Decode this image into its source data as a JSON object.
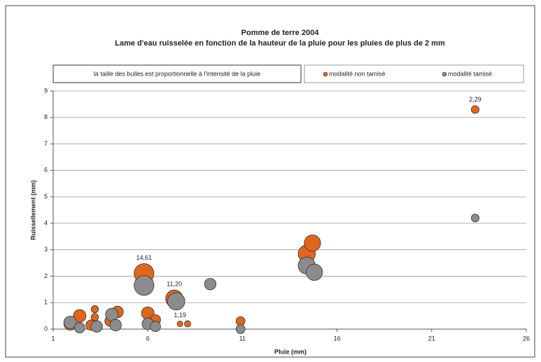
{
  "chart_data": {
    "type": "bubble",
    "title": "Pomme de terre 2004",
    "subtitle": "Lame d'eau ruisselée en fonction de la hauteur de la pluie pour les pluies de plus de 2 mm",
    "annotation": "la taille des bulles est proportionnelle à l'intensité de la pluie",
    "x_label": "Pluie (mm)",
    "y_label": "Ruissellement (mm)",
    "xlim": [
      1,
      26
    ],
    "xticks": [
      1,
      6,
      11,
      16,
      21,
      26
    ],
    "ylim": [
      0,
      9
    ],
    "yticks": [
      0,
      1,
      2,
      3,
      4,
      5,
      6,
      7,
      8,
      9
    ],
    "grid": true,
    "legend": "top-right",
    "series": [
      {
        "name": "modalité non tamisé",
        "color": "#e0661c",
        "x": [
          1.9,
          2.4,
          3.2,
          3.2,
          3.0,
          4.4,
          4.0,
          5.8,
          6.0,
          6.4,
          7.4,
          7.7,
          8.1,
          10.9,
          14.4,
          14.7,
          23.3
        ],
        "values": [
          0.2,
          0.5,
          0.75,
          0.45,
          0.15,
          0.65,
          0.3,
          2.1,
          0.6,
          0.35,
          1.15,
          0.2,
          0.2,
          0.3,
          2.85,
          3.25,
          8.3
        ],
        "sizes": [
          6,
          6,
          2,
          2,
          4,
          5,
          4,
          14.61,
          6,
          4,
          11.2,
          1.19,
          1.5,
          3,
          11,
          10,
          2.29
        ],
        "size_labels": [
          null,
          null,
          null,
          null,
          null,
          null,
          null,
          "14,61",
          null,
          null,
          "11,20",
          "1,19",
          null,
          null,
          null,
          null,
          "2,29"
        ]
      },
      {
        "name": "modalité tamisé",
        "color": "#8c8c8c",
        "x": [
          1.9,
          2.4,
          3.3,
          4.1,
          4.3,
          5.8,
          6.0,
          6.4,
          7.5,
          9.3,
          10.9,
          14.4,
          14.8,
          23.3
        ],
        "values": [
          0.25,
          0.05,
          0.1,
          0.55,
          0.15,
          1.65,
          0.2,
          0.1,
          1.05,
          1.7,
          0.0,
          2.4,
          2.15,
          4.2
        ],
        "sizes": [
          6,
          4,
          5,
          6,
          5,
          14.61,
          5,
          4,
          11.2,
          5,
          3,
          11,
          10,
          2.29
        ]
      }
    ]
  }
}
